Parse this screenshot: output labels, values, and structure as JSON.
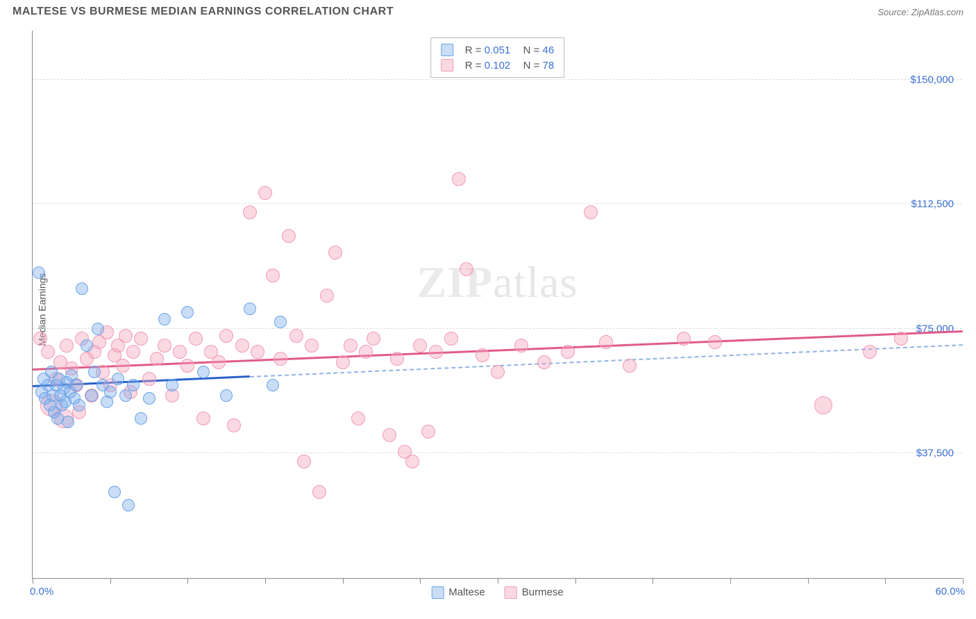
{
  "header": {
    "title": "MALTESE VS BURMESE MEDIAN EARNINGS CORRELATION CHART",
    "source_label": "Source: ",
    "source_name": "ZipAtlas.com"
  },
  "watermark": {
    "part1": "ZIP",
    "part2": "atlas"
  },
  "chart": {
    "type": "scatter",
    "background_color": "#ffffff",
    "grid_color": "#dddddd",
    "axis_color": "#888888",
    "label_color": "#555555",
    "value_color": "#3b6fd4",
    "ylabel": "Median Earnings",
    "ylim": [
      0,
      165000
    ],
    "xlim": [
      0,
      60
    ],
    "x_min_label": "0.0%",
    "x_max_label": "60.0%",
    "yticks": [
      {
        "v": 37500,
        "label": "$37,500"
      },
      {
        "v": 75000,
        "label": "$75,000"
      },
      {
        "v": 112500,
        "label": "$112,500"
      },
      {
        "v": 150000,
        "label": "$150,000"
      }
    ],
    "xticks": [
      0,
      5,
      10,
      15,
      20,
      25,
      30,
      35,
      40,
      45,
      50,
      55,
      60
    ],
    "series": [
      {
        "name": "Maltese",
        "fill": "rgba(120,170,235,0.40)",
        "stroke": "#6aa3e8",
        "line_color": "#2b62c9",
        "line_dash_color": "#8fb3e6",
        "marker_r": 9,
        "R_label": "R = ",
        "R": "0.051",
        "N_label": "N = ",
        "N": "46",
        "trend": {
          "x1": 0,
          "y1": 57500,
          "x2_solid": 14,
          "x2": 60,
          "y2": 70000
        },
        "points": [
          {
            "x": 0.4,
            "y": 92000
          },
          {
            "x": 0.6,
            "y": 56000
          },
          {
            "x": 0.7,
            "y": 60000
          },
          {
            "x": 0.8,
            "y": 54000
          },
          {
            "x": 1.0,
            "y": 58000
          },
          {
            "x": 1.1,
            "y": 52000
          },
          {
            "x": 1.2,
            "y": 62000
          },
          {
            "x": 1.3,
            "y": 55000
          },
          {
            "x": 1.4,
            "y": 50000
          },
          {
            "x": 1.5,
            "y": 58000
          },
          {
            "x": 1.6,
            "y": 48000
          },
          {
            "x": 1.7,
            "y": 60000
          },
          {
            "x": 1.8,
            "y": 55000
          },
          {
            "x": 1.9,
            "y": 52000
          },
          {
            "x": 2.0,
            "y": 57000
          },
          {
            "x": 2.1,
            "y": 53000
          },
          {
            "x": 2.2,
            "y": 59000
          },
          {
            "x": 2.3,
            "y": 47000
          },
          {
            "x": 2.4,
            "y": 56000
          },
          {
            "x": 2.5,
            "y": 61000
          },
          {
            "x": 2.7,
            "y": 54000
          },
          {
            "x": 2.8,
            "y": 58000
          },
          {
            "x": 3.0,
            "y": 52000
          },
          {
            "x": 3.2,
            "y": 87000
          },
          {
            "x": 3.5,
            "y": 70000
          },
          {
            "x": 3.8,
            "y": 55000
          },
          {
            "x": 4.0,
            "y": 62000
          },
          {
            "x": 4.2,
            "y": 75000
          },
          {
            "x": 4.5,
            "y": 58000
          },
          {
            "x": 4.8,
            "y": 53000
          },
          {
            "x": 5.0,
            "y": 56000
          },
          {
            "x": 5.3,
            "y": 26000
          },
          {
            "x": 5.5,
            "y": 60000
          },
          {
            "x": 6.0,
            "y": 55000
          },
          {
            "x": 6.2,
            "y": 22000
          },
          {
            "x": 6.5,
            "y": 58000
          },
          {
            "x": 7.0,
            "y": 48000
          },
          {
            "x": 7.5,
            "y": 54000
          },
          {
            "x": 8.5,
            "y": 78000
          },
          {
            "x": 9.0,
            "y": 58000
          },
          {
            "x": 10.0,
            "y": 80000
          },
          {
            "x": 11.0,
            "y": 62000
          },
          {
            "x": 12.5,
            "y": 55000
          },
          {
            "x": 14.0,
            "y": 81000
          },
          {
            "x": 15.5,
            "y": 58000
          },
          {
            "x": 16.0,
            "y": 77000
          }
        ]
      },
      {
        "name": "Burmese",
        "fill": "rgba(245,160,185,0.40)",
        "stroke": "#f19ab5",
        "line_color": "#e05a8a",
        "marker_r": 10,
        "R_label": "R = ",
        "R": "0.102",
        "N_label": "N = ",
        "N": "78",
        "trend": {
          "x1": 0,
          "y1": 62500,
          "x2_solid": 60,
          "x2": 60,
          "y2": 74000
        },
        "points": [
          {
            "x": 0.5,
            "y": 72000
          },
          {
            "x": 1.0,
            "y": 68000
          },
          {
            "x": 1.2,
            "y": 52000,
            "r": 16
          },
          {
            "x": 1.5,
            "y": 60000
          },
          {
            "x": 1.8,
            "y": 65000
          },
          {
            "x": 2.0,
            "y": 48000,
            "r": 14
          },
          {
            "x": 2.2,
            "y": 70000
          },
          {
            "x": 2.5,
            "y": 63000
          },
          {
            "x": 2.8,
            "y": 58000
          },
          {
            "x": 3.0,
            "y": 50000
          },
          {
            "x": 3.2,
            "y": 72000
          },
          {
            "x": 3.5,
            "y": 66000
          },
          {
            "x": 3.8,
            "y": 55000
          },
          {
            "x": 4.0,
            "y": 68000
          },
          {
            "x": 4.3,
            "y": 71000
          },
          {
            "x": 4.5,
            "y": 62000
          },
          {
            "x": 4.8,
            "y": 74000
          },
          {
            "x": 5.0,
            "y": 58000
          },
          {
            "x": 5.3,
            "y": 67000
          },
          {
            "x": 5.5,
            "y": 70000
          },
          {
            "x": 5.8,
            "y": 64000
          },
          {
            "x": 6.0,
            "y": 73000
          },
          {
            "x": 6.3,
            "y": 56000
          },
          {
            "x": 6.5,
            "y": 68000
          },
          {
            "x": 7.0,
            "y": 72000
          },
          {
            "x": 7.5,
            "y": 60000
          },
          {
            "x": 8.0,
            "y": 66000
          },
          {
            "x": 8.5,
            "y": 70000
          },
          {
            "x": 9.0,
            "y": 55000
          },
          {
            "x": 9.5,
            "y": 68000
          },
          {
            "x": 10.0,
            "y": 64000
          },
          {
            "x": 10.5,
            "y": 72000
          },
          {
            "x": 11.0,
            "y": 48000
          },
          {
            "x": 11.5,
            "y": 68000
          },
          {
            "x": 12.0,
            "y": 65000
          },
          {
            "x": 12.5,
            "y": 73000
          },
          {
            "x": 13.0,
            "y": 46000
          },
          {
            "x": 13.5,
            "y": 70000
          },
          {
            "x": 14.0,
            "y": 110000
          },
          {
            "x": 14.5,
            "y": 68000
          },
          {
            "x": 15.0,
            "y": 116000
          },
          {
            "x": 15.5,
            "y": 91000
          },
          {
            "x": 16.0,
            "y": 66000
          },
          {
            "x": 16.5,
            "y": 103000
          },
          {
            "x": 17.0,
            "y": 73000
          },
          {
            "x": 17.5,
            "y": 35000
          },
          {
            "x": 18.0,
            "y": 70000
          },
          {
            "x": 18.5,
            "y": 26000
          },
          {
            "x": 19.0,
            "y": 85000
          },
          {
            "x": 19.5,
            "y": 98000
          },
          {
            "x": 20.0,
            "y": 65000
          },
          {
            "x": 20.5,
            "y": 70000
          },
          {
            "x": 21.0,
            "y": 48000
          },
          {
            "x": 21.5,
            "y": 68000
          },
          {
            "x": 22.0,
            "y": 72000
          },
          {
            "x": 23.0,
            "y": 43000
          },
          {
            "x": 23.5,
            "y": 66000
          },
          {
            "x": 24.0,
            "y": 38000
          },
          {
            "x": 24.5,
            "y": 35000
          },
          {
            "x": 25.0,
            "y": 70000
          },
          {
            "x": 25.5,
            "y": 44000
          },
          {
            "x": 26.0,
            "y": 68000
          },
          {
            "x": 27.0,
            "y": 72000
          },
          {
            "x": 27.5,
            "y": 120000
          },
          {
            "x": 28.0,
            "y": 93000
          },
          {
            "x": 29.0,
            "y": 67000
          },
          {
            "x": 30.0,
            "y": 62000
          },
          {
            "x": 31.5,
            "y": 70000
          },
          {
            "x": 33.0,
            "y": 65000
          },
          {
            "x": 34.5,
            "y": 68000
          },
          {
            "x": 36.0,
            "y": 110000
          },
          {
            "x": 37.0,
            "y": 71000
          },
          {
            "x": 38.5,
            "y": 64000
          },
          {
            "x": 42.0,
            "y": 72000
          },
          {
            "x": 44.0,
            "y": 71000
          },
          {
            "x": 51.0,
            "y": 52000,
            "r": 13
          },
          {
            "x": 54.0,
            "y": 68000
          },
          {
            "x": 56.0,
            "y": 72000
          }
        ]
      }
    ]
  },
  "legend": {
    "series1": "Maltese",
    "series2": "Burmese"
  }
}
